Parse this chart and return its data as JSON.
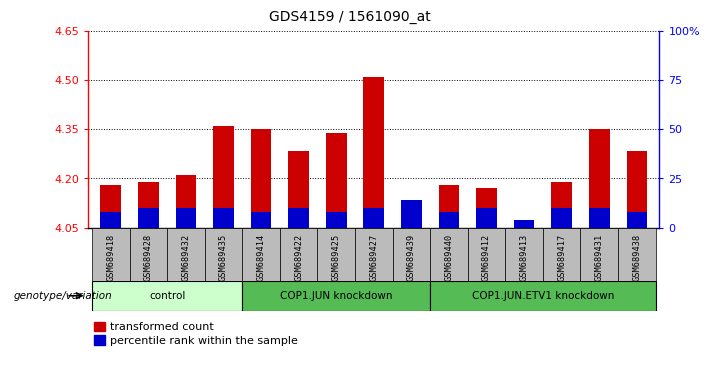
{
  "title": "GDS4159 / 1561090_at",
  "samples": [
    "GSM689418",
    "GSM689428",
    "GSM689432",
    "GSM689435",
    "GSM689414",
    "GSM689422",
    "GSM689425",
    "GSM689427",
    "GSM689439",
    "GSM689440",
    "GSM689412",
    "GSM689413",
    "GSM689417",
    "GSM689431",
    "GSM689438"
  ],
  "red_values": [
    4.18,
    4.19,
    4.21,
    4.36,
    4.35,
    4.285,
    4.34,
    4.51,
    4.055,
    4.18,
    4.17,
    4.07,
    4.19,
    4.35,
    4.285
  ],
  "blue_pct": [
    8,
    10,
    10,
    10,
    8,
    10,
    8,
    10,
    14,
    8,
    10,
    4,
    10,
    10,
    8
  ],
  "base": 4.05,
  "ylim_left": [
    4.05,
    4.65
  ],
  "ylim_right": [
    0,
    100
  ],
  "yticks_left": [
    4.05,
    4.2,
    4.35,
    4.5,
    4.65
  ],
  "yticks_right": [
    0,
    25,
    50,
    75,
    100
  ],
  "ytick_labels_right": [
    "0",
    "25",
    "50",
    "75",
    "100%"
  ],
  "hlines": [
    4.2,
    4.35,
    4.5,
    4.65
  ],
  "groups": [
    {
      "label": "control",
      "start": 0,
      "end": 4,
      "color": "#ccffcc"
    },
    {
      "label": "COP1.JUN knockdown",
      "start": 4,
      "end": 9,
      "color": "#55bb55"
    },
    {
      "label": "COP1.JUN.ETV1 knockdown",
      "start": 9,
      "end": 15,
      "color": "#55bb55"
    }
  ],
  "bar_width": 0.55,
  "red_color": "#cc0000",
  "blue_color": "#0000cc",
  "bg_color": "#bbbbbb",
  "plot_bg": "#ffffff",
  "legend_red": "transformed count",
  "legend_blue": "percentile rank within the sample",
  "genotype_label": "genotype/variation"
}
